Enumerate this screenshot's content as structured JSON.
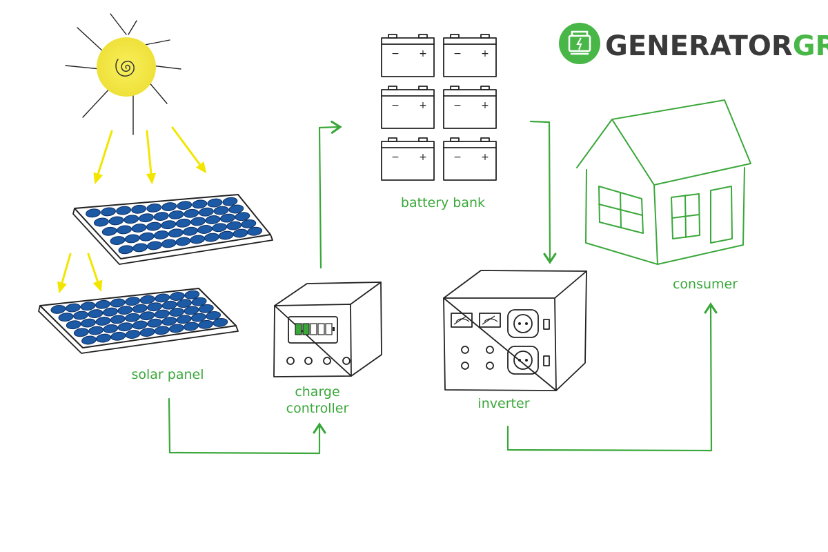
{
  "logo": {
    "text_dark": "GENERATOR",
    "text_green": "GRID",
    "color_dark": "#3a3a3a",
    "color_green": "#49b748"
  },
  "labels": {
    "solar_panel": "solar panel",
    "charge_controller_line1": "charge",
    "charge_controller_line2": "controller",
    "battery_bank": "battery bank",
    "inverter": "inverter",
    "consumer": "consumer"
  },
  "colors": {
    "flow": "#3aa73a",
    "sun": "#f5e94a",
    "sun_rays_to_panel": "#f2e600",
    "panel_cell": "#1c5aa6",
    "battery_charge": "#38a838"
  },
  "icons": {
    "sun": "sun-icon",
    "solar_panel": "solar-panel-icon",
    "battery": "battery-icon",
    "charge_controller": "charge-controller-icon",
    "inverter": "inverter-icon",
    "house": "house-icon",
    "logo": "generator-logo-icon"
  },
  "battery": {
    "polarity_minus": "−",
    "polarity_plus": "+",
    "charge_indicator_filled_segments": 2,
    "charge_indicator_total_segments": 5
  }
}
